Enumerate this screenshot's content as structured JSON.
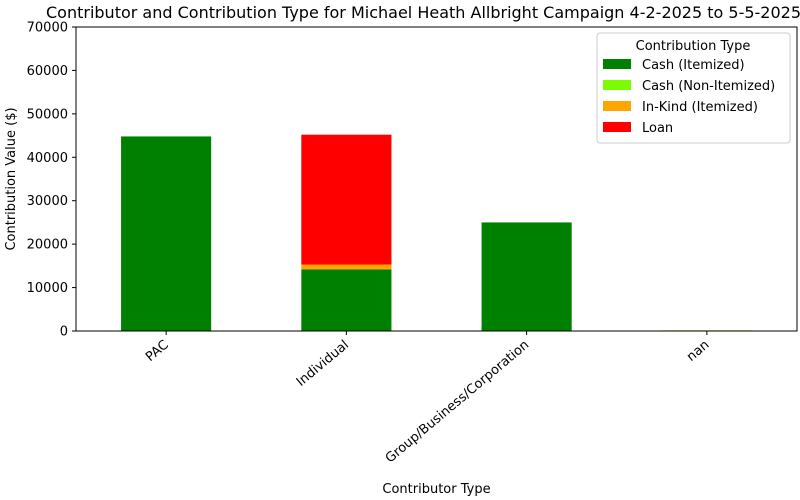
{
  "chart_data": {
    "type": "bar",
    "stacked": true,
    "title": "Contributor and Contribution Type for Michael Heath Allbright Campaign 4-2-2025 to 5-5-2025",
    "xlabel": "Contributor Type",
    "ylabel": "Contribution Value ($)",
    "categories": [
      "PAC",
      "Individual",
      "Group/Business/Corporation",
      "nan"
    ],
    "ylim": [
      0,
      70000
    ],
    "yticks": [
      0,
      10000,
      20000,
      30000,
      40000,
      50000,
      60000,
      70000
    ],
    "grid": false,
    "legend": {
      "title": "Contribution Type",
      "position": "top-right"
    },
    "series": [
      {
        "name": "Cash (Itemized)",
        "color": "#008000",
        "values": [
          44800,
          14200,
          25000,
          0
        ]
      },
      {
        "name": "Cash (Non-Itemized)",
        "color": "#7CFC00",
        "values": [
          0,
          0,
          0,
          150
        ]
      },
      {
        "name": "In-Kind (Itemized)",
        "color": "#FFA500",
        "values": [
          0,
          1100,
          0,
          0
        ]
      },
      {
        "name": "Loan",
        "color": "#FF0000",
        "values": [
          0,
          29900,
          0,
          0
        ]
      }
    ]
  }
}
